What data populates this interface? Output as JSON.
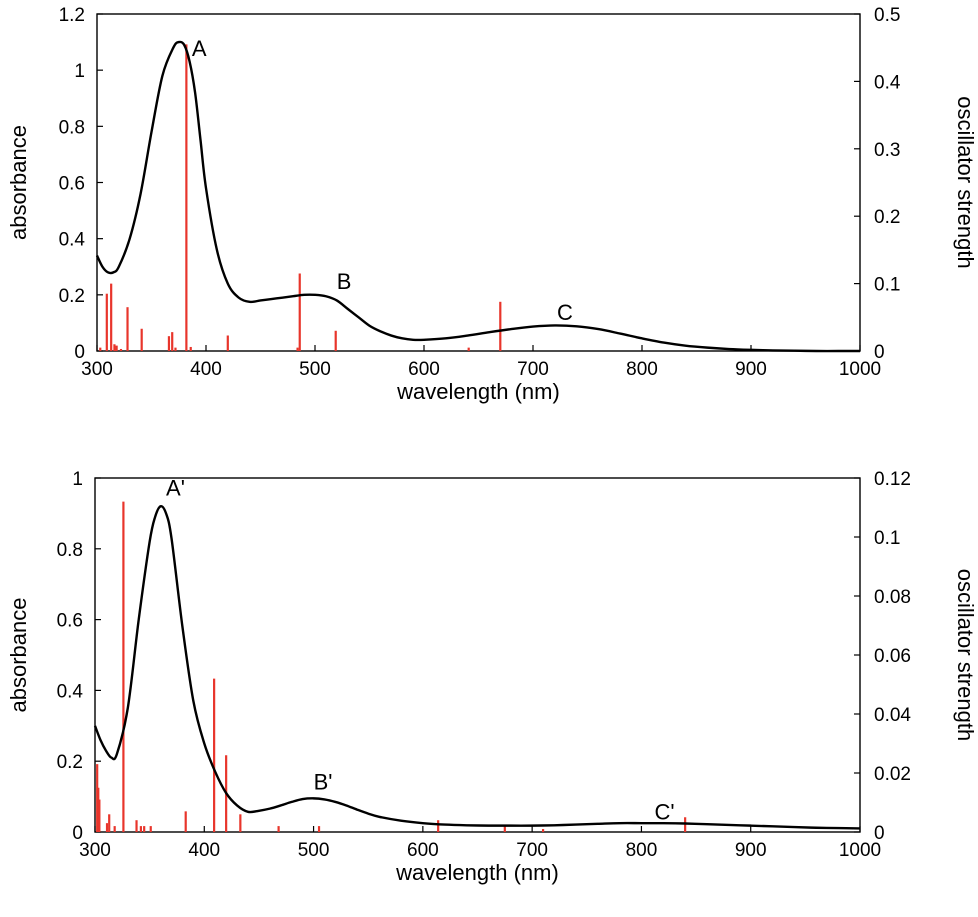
{
  "chart_data": [
    {
      "type": "line",
      "id": "top",
      "xlabel": "wavelength (nm)",
      "ylabel": "absorbance",
      "y2label": "oscillator strength",
      "xlim": [
        300,
        1000
      ],
      "ylim": [
        0,
        1.2
      ],
      "y2lim": [
        0,
        0.5
      ],
      "x_ticks": [
        "300",
        "400",
        "500",
        "600",
        "700",
        "800",
        "900",
        "1000"
      ],
      "y_ticks": [
        "0",
        "0.2",
        "0.4",
        "0.6",
        "0.8",
        "1",
        "1.2"
      ],
      "y2_ticks": [
        "0",
        "0.1",
        "0.2",
        "0.3",
        "0.4",
        "0.5"
      ],
      "colors": {
        "curve": "#000000",
        "sticks": "#e8352b"
      },
      "absorbance_curve": {
        "x": [
          300,
          305,
          310,
          315,
          320,
          330,
          340,
          350,
          360,
          370,
          375,
          380,
          385,
          390,
          395,
          400,
          410,
          420,
          430,
          440,
          450,
          460,
          470,
          480,
          490,
          500,
          510,
          520,
          530,
          540,
          550,
          560,
          570,
          580,
          590,
          600,
          620,
          640,
          660,
          680,
          700,
          720,
          740,
          760,
          780,
          800,
          820,
          840,
          860,
          880,
          900,
          920,
          940,
          960,
          980,
          1000
        ],
        "y": [
          0.34,
          0.3,
          0.28,
          0.28,
          0.3,
          0.4,
          0.56,
          0.78,
          0.98,
          1.08,
          1.1,
          1.09,
          1.03,
          0.92,
          0.75,
          0.58,
          0.36,
          0.24,
          0.19,
          0.175,
          0.18,
          0.185,
          0.19,
          0.195,
          0.2,
          0.2,
          0.195,
          0.18,
          0.15,
          0.12,
          0.09,
          0.07,
          0.055,
          0.045,
          0.04,
          0.04,
          0.045,
          0.055,
          0.067,
          0.078,
          0.087,
          0.091,
          0.088,
          0.078,
          0.062,
          0.045,
          0.03,
          0.019,
          0.012,
          0.007,
          0.004,
          0.002,
          0.001,
          0.0,
          0.0,
          0.0
        ]
      },
      "oscillator_sticks": {
        "x": [
          303,
          309,
          313,
          316,
          318,
          322,
          328,
          341,
          366,
          369,
          372,
          382,
          386,
          420,
          484,
          486,
          519,
          641,
          670
        ],
        "f": [
          0.005,
          0.085,
          0.1,
          0.01,
          0.008,
          0.003,
          0.065,
          0.033,
          0.022,
          0.028,
          0.005,
          0.455,
          0.006,
          0.023,
          0.005,
          0.115,
          0.03,
          0.005,
          0.073
        ]
      },
      "annotations": [
        {
          "text": "A",
          "x": 387,
          "y": 1.05
        },
        {
          "text": "B",
          "x": 520,
          "y": 0.22
        },
        {
          "text": "C",
          "x": 722,
          "y": 0.11
        }
      ]
    },
    {
      "type": "line",
      "id": "bottom",
      "xlabel": "wavelength (nm)",
      "ylabel": "absorbance",
      "y2label": "oscillator strength",
      "xlim": [
        300,
        1000
      ],
      "ylim": [
        0,
        1
      ],
      "y2lim": [
        0,
        0.12
      ],
      "x_ticks": [
        "300",
        "400",
        "500",
        "600",
        "700",
        "800",
        "900",
        "1000"
      ],
      "y_ticks": [
        "0",
        "0.2",
        "0.4",
        "0.6",
        "0.8",
        "1"
      ],
      "y2_ticks": [
        "0",
        "0.02",
        "0.04",
        "0.06",
        "0.08",
        "0.1",
        "0.12"
      ],
      "colors": {
        "curve": "#000000",
        "sticks": "#e8352b"
      },
      "absorbance_curve": {
        "x": [
          300,
          305,
          310,
          315,
          320,
          330,
          340,
          350,
          355,
          360,
          365,
          370,
          380,
          390,
          400,
          410,
          420,
          430,
          440,
          450,
          460,
          470,
          480,
          490,
          500,
          510,
          520,
          530,
          540,
          550,
          560,
          580,
          600,
          620,
          640,
          660,
          680,
          700,
          720,
          740,
          760,
          780,
          800,
          820,
          840,
          860,
          880,
          900,
          920,
          940,
          960,
          980,
          1000
        ],
        "y": [
          0.3,
          0.26,
          0.23,
          0.21,
          0.22,
          0.35,
          0.6,
          0.82,
          0.89,
          0.92,
          0.9,
          0.83,
          0.58,
          0.37,
          0.25,
          0.17,
          0.11,
          0.075,
          0.057,
          0.06,
          0.066,
          0.075,
          0.085,
          0.093,
          0.095,
          0.092,
          0.085,
          0.075,
          0.063,
          0.052,
          0.043,
          0.032,
          0.025,
          0.021,
          0.019,
          0.018,
          0.018,
          0.018,
          0.019,
          0.021,
          0.023,
          0.025,
          0.025,
          0.025,
          0.024,
          0.022,
          0.02,
          0.018,
          0.016,
          0.014,
          0.012,
          0.011,
          0.01
        ]
      },
      "oscillator_sticks": {
        "x": [
          302,
          303,
          304,
          311,
          313,
          318,
          326,
          338,
          342,
          345,
          351,
          383,
          409,
          420,
          433,
          468,
          505,
          614,
          675,
          710,
          840
        ],
        "f": [
          0.023,
          0.015,
          0.011,
          0.003,
          0.006,
          0.002,
          0.112,
          0.004,
          0.002,
          0.002,
          0.002,
          0.007,
          0.052,
          0.026,
          0.006,
          0.002,
          0.002,
          0.004,
          0.002,
          0.001,
          0.005
        ]
      },
      "annotations": [
        {
          "text": "A'",
          "x": 365,
          "y": 0.95
        },
        {
          "text": "B'",
          "x": 500,
          "y": 0.12
        },
        {
          "text": "C'",
          "x": 812,
          "y": 0.035
        }
      ]
    }
  ]
}
